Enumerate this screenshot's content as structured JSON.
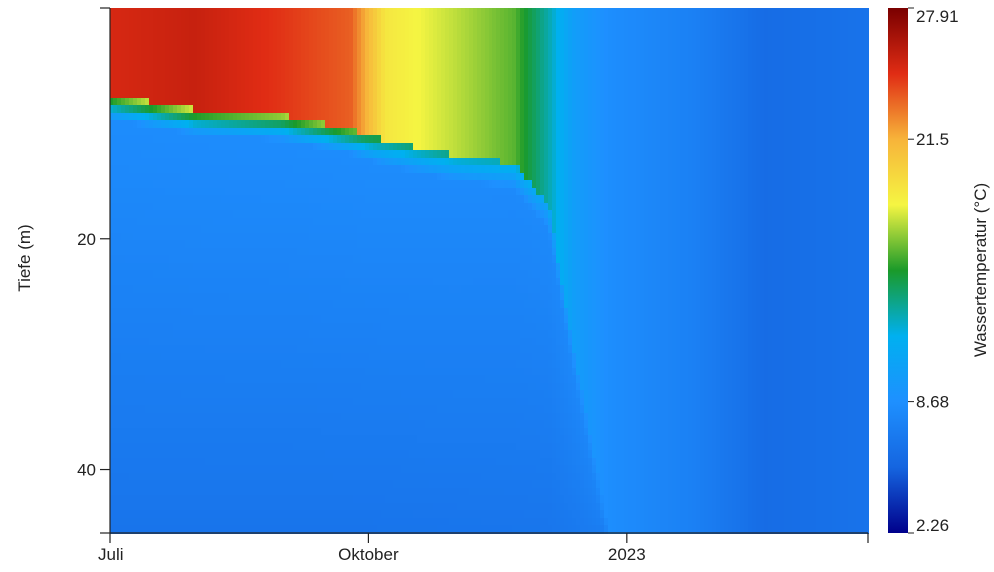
{
  "chart_data": {
    "type": "heatmap",
    "title": "",
    "ylabel": "Tiefe (m)",
    "xlabel": "",
    "colorbar_label": "Wassertemperatur (°C)",
    "x_ticks": [
      {
        "label": "Juli",
        "month_index": 0
      },
      {
        "label": "Oktober",
        "month_index": 3
      },
      {
        "label": "2023",
        "month_index": 6
      }
    ],
    "x_range_months": [
      0,
      8.8
    ],
    "ylim": [
      0,
      45.5
    ],
    "y_ticks": [
      20,
      40
    ],
    "y_inverted": true,
    "color_range": [
      2.26,
      27.91
    ],
    "colorbar_ticks": [
      27.91,
      21.5,
      8.68,
      2.26
    ],
    "colormap": [
      "#00008b",
      "#1565e0",
      "#1e90ff",
      "#00b0f0",
      "#1a9a2a",
      "#f5f542",
      "#f7b43a",
      "#e02c14",
      "#7a0000"
    ],
    "thermocline": [
      {
        "month": 0.0,
        "depth": 7.5,
        "surface": 25.0
      },
      {
        "month": 1.0,
        "depth": 8.8,
        "surface": 25.5
      },
      {
        "month": 2.0,
        "depth": 9.3,
        "surface": 24.5
      },
      {
        "month": 2.8,
        "depth": 10.5,
        "surface": 23.5
      },
      {
        "month": 3.2,
        "depth": 11.5,
        "surface": 19.0
      },
      {
        "month": 4.0,
        "depth": 12.8,
        "surface": 17.5
      },
      {
        "month": 4.7,
        "depth": 13.5,
        "surface": 16.0
      },
      {
        "month": 5.1,
        "depth": 17.0,
        "surface": 13.0
      },
      {
        "month": 5.4,
        "depth": 30.0,
        "surface": 10.0
      },
      {
        "month": 5.8,
        "depth": 45.5,
        "surface": 8.5
      },
      {
        "month": 6.8,
        "depth": 45.5,
        "surface": 7.5
      },
      {
        "month": 7.6,
        "depth": 45.5,
        "surface": 6.0
      },
      {
        "month": 8.8,
        "depth": 45.5,
        "surface": 6.5
      }
    ],
    "deep_water": [
      {
        "month": 0.0,
        "top": 8.5,
        "bottom": 6.6
      },
      {
        "month": 3.0,
        "top": 8.5,
        "bottom": 6.6
      },
      {
        "month": 5.1,
        "top": 8.3,
        "bottom": 6.7
      },
      {
        "month": 6.0,
        "top": 8.0,
        "bottom": 7.5
      },
      {
        "month": 6.7,
        "top": 6.8,
        "bottom": 4.8
      },
      {
        "month": 7.6,
        "top": 5.5,
        "bottom": 5.0
      },
      {
        "month": 8.8,
        "top": 6.5,
        "bottom": 5.6
      }
    ]
  }
}
